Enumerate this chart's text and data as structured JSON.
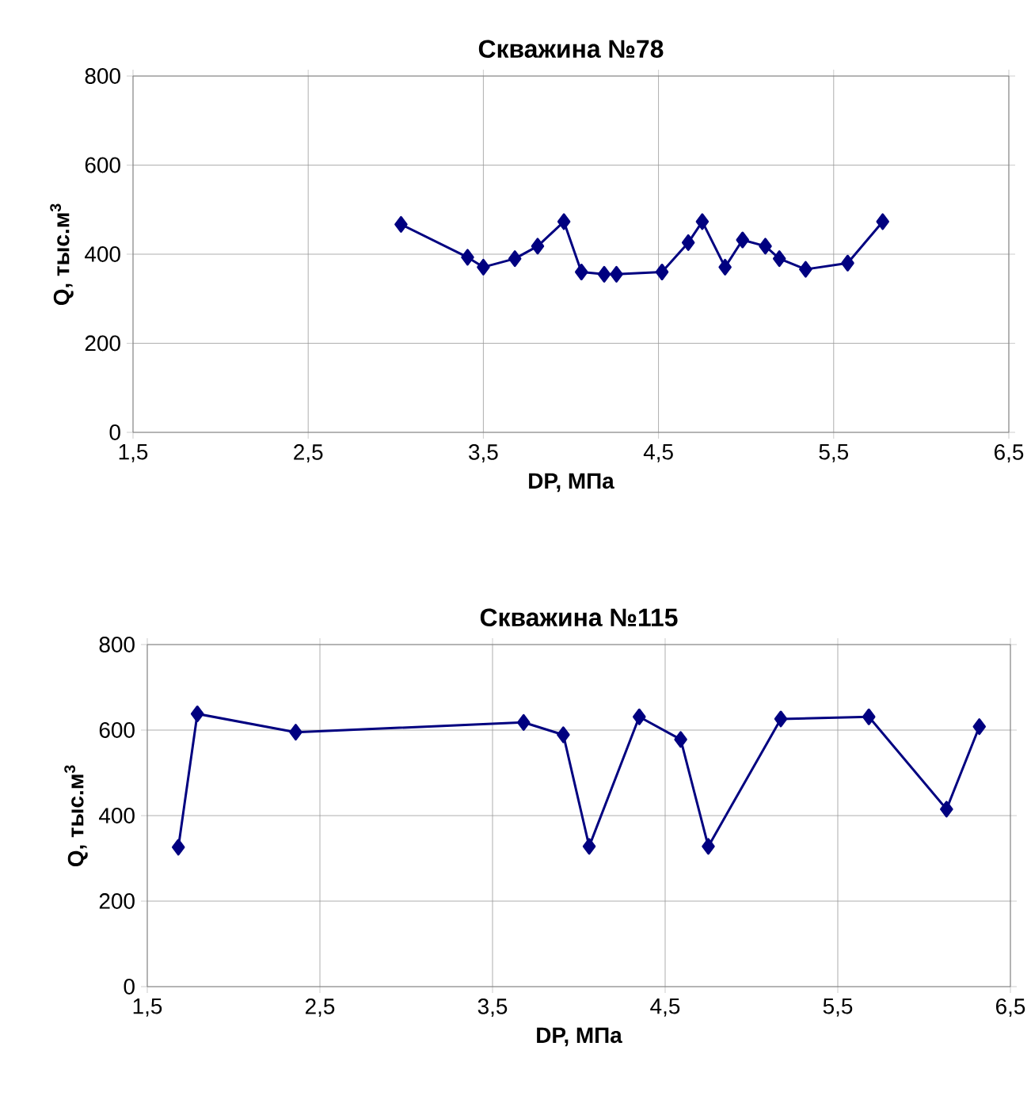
{
  "chart_data": [
    {
      "type": "line",
      "title": "Скважина №78",
      "xlabel": "DP, МПа",
      "ylabel": "Q, тыс.м$^{3}$",
      "x": [
        3.03,
        3.41,
        3.5,
        3.68,
        3.81,
        3.96,
        4.06,
        4.19,
        4.26,
        4.52,
        4.67,
        4.75,
        4.88,
        4.98,
        5.11,
        5.19,
        5.34,
        5.58,
        5.78
      ],
      "series": [
        {
          "color": "#000080",
          "values": [
            467,
            393,
            371,
            390,
            418,
            473,
            360,
            355,
            355,
            360,
            426,
            473,
            371,
            432,
            418,
            390,
            366,
            380,
            473
          ]
        }
      ],
      "xlim": [
        1.5,
        6.5
      ],
      "ylim": [
        0,
        800
      ],
      "xticks": [
        {
          "value": 1.5,
          "label": "1,5"
        },
        {
          "value": 2.5,
          "label": "2,5"
        },
        {
          "value": 3.5,
          "label": "3,5"
        },
        {
          "value": 4.5,
          "label": "4,5"
        },
        {
          "value": 5.5,
          "label": "5,5"
        },
        {
          "value": 6.5,
          "label": "6,5"
        }
      ],
      "yticks": [
        0,
        200,
        400,
        600,
        800
      ],
      "grid": true,
      "marker": "diamond",
      "line_style": "solid"
    },
    {
      "type": "line",
      "title": "Скважина №115",
      "xlabel": "DP, МПа",
      "ylabel": "Q, тыс.м$^{3}$",
      "x": [
        1.68,
        1.79,
        2.36,
        3.68,
        3.91,
        4.06,
        4.35,
        4.59,
        4.75,
        5.17,
        5.68,
        6.13,
        6.32
      ],
      "series": [
        {
          "color": "#000080",
          "values": [
            326,
            638,
            595,
            618,
            589,
            328,
            631,
            578,
            328,
            626,
            631,
            415,
            608
          ]
        }
      ],
      "xlim": [
        1.5,
        6.5
      ],
      "ylim": [
        0,
        800
      ],
      "xticks": [
        {
          "value": 1.5,
          "label": "1,5"
        },
        {
          "value": 2.5,
          "label": "2,5"
        },
        {
          "value": 3.5,
          "label": "3,5"
        },
        {
          "value": 4.5,
          "label": "4,5"
        },
        {
          "value": 5.5,
          "label": "5,5"
        },
        {
          "value": 6.5,
          "label": "6,5"
        }
      ],
      "yticks": [
        0,
        200,
        400,
        600,
        800
      ],
      "grid": true,
      "marker": "diamond",
      "line_style": "solid"
    }
  ]
}
